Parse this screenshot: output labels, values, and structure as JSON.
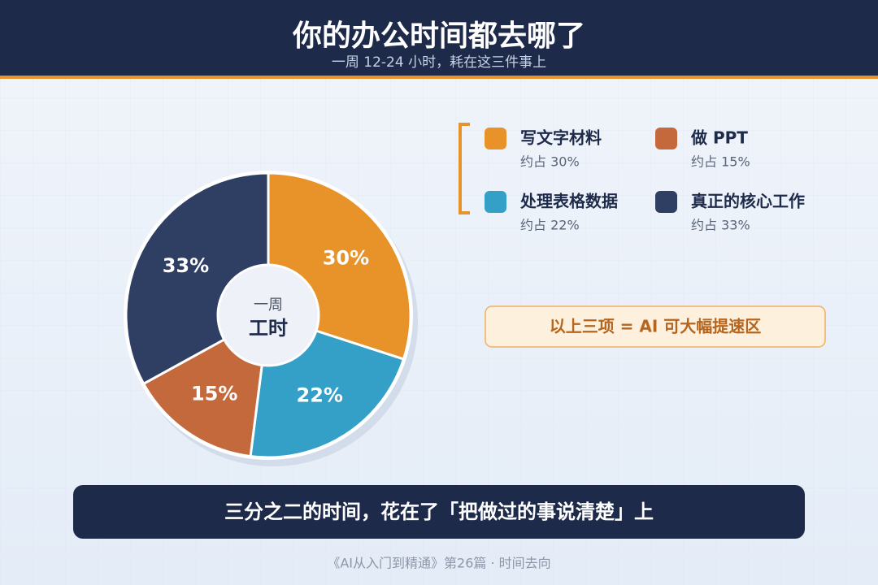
{
  "chart_data": {
    "type": "pie",
    "title": "你的办公时间都去哪了",
    "subtitle": "一周 12-24 小时，耗在这三件事上",
    "categories": [
      "写文字材料",
      "处理表格数据",
      "做 PPT",
      "真正的核心工作"
    ],
    "values": [
      30,
      22,
      15,
      33
    ],
    "value_labels": [
      "30%",
      "22%",
      "15%",
      "33%"
    ],
    "colors": [
      "#e8922a",
      "#34a0c8",
      "#c4693c",
      "#2e3f63"
    ],
    "legend_notes": [
      "约占 30%",
      "约占 22%",
      "约占 15%",
      "约占 33%"
    ],
    "center_label": {
      "top": "一周",
      "main": "工时"
    }
  },
  "callout": "以上三项 = AI 可大幅提速区",
  "banner": "三分之二的时间，花在了「把做过的事说清楚」上",
  "footer": "《AI从入门到精通》第26篇 · 时间去向"
}
